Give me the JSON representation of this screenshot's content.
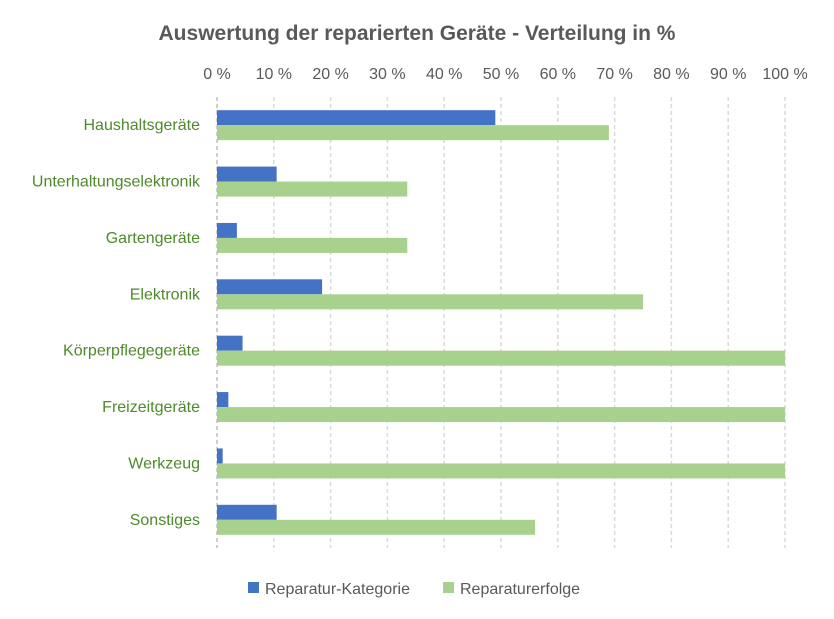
{
  "chart_data": {
    "type": "bar",
    "orientation": "horizontal",
    "title": "Auswertung der reparierten Geräte - Verteilung in %",
    "xlabel": "",
    "ylabel": "",
    "xlim": [
      0,
      100
    ],
    "x_ticks": [
      "0 %",
      "10 %",
      "20 %",
      "30 %",
      "40 %",
      "50 %",
      "60 %",
      "70 %",
      "80 %",
      "90 %",
      "100 %"
    ],
    "x_axis_position": "top",
    "grid": true,
    "legend_position": "bottom",
    "categories": [
      "Haushaltsgeräte",
      "Unterhaltungselektronik",
      "Gartengeräte",
      "Elektronik",
      "Körperpflegegeräte",
      "Freizeitgeräte",
      "Werkzeug",
      "Sonstiges"
    ],
    "series": [
      {
        "name": "Reparatur-Kategorie",
        "color": "#4472c4",
        "values": [
          49,
          10.5,
          3.5,
          18.5,
          4.5,
          2,
          1,
          10.5
        ]
      },
      {
        "name": "Reparaturerfolge",
        "color": "#a9d18e",
        "values": [
          69,
          33.5,
          33.5,
          75,
          100,
          100,
          100,
          56
        ]
      }
    ]
  }
}
